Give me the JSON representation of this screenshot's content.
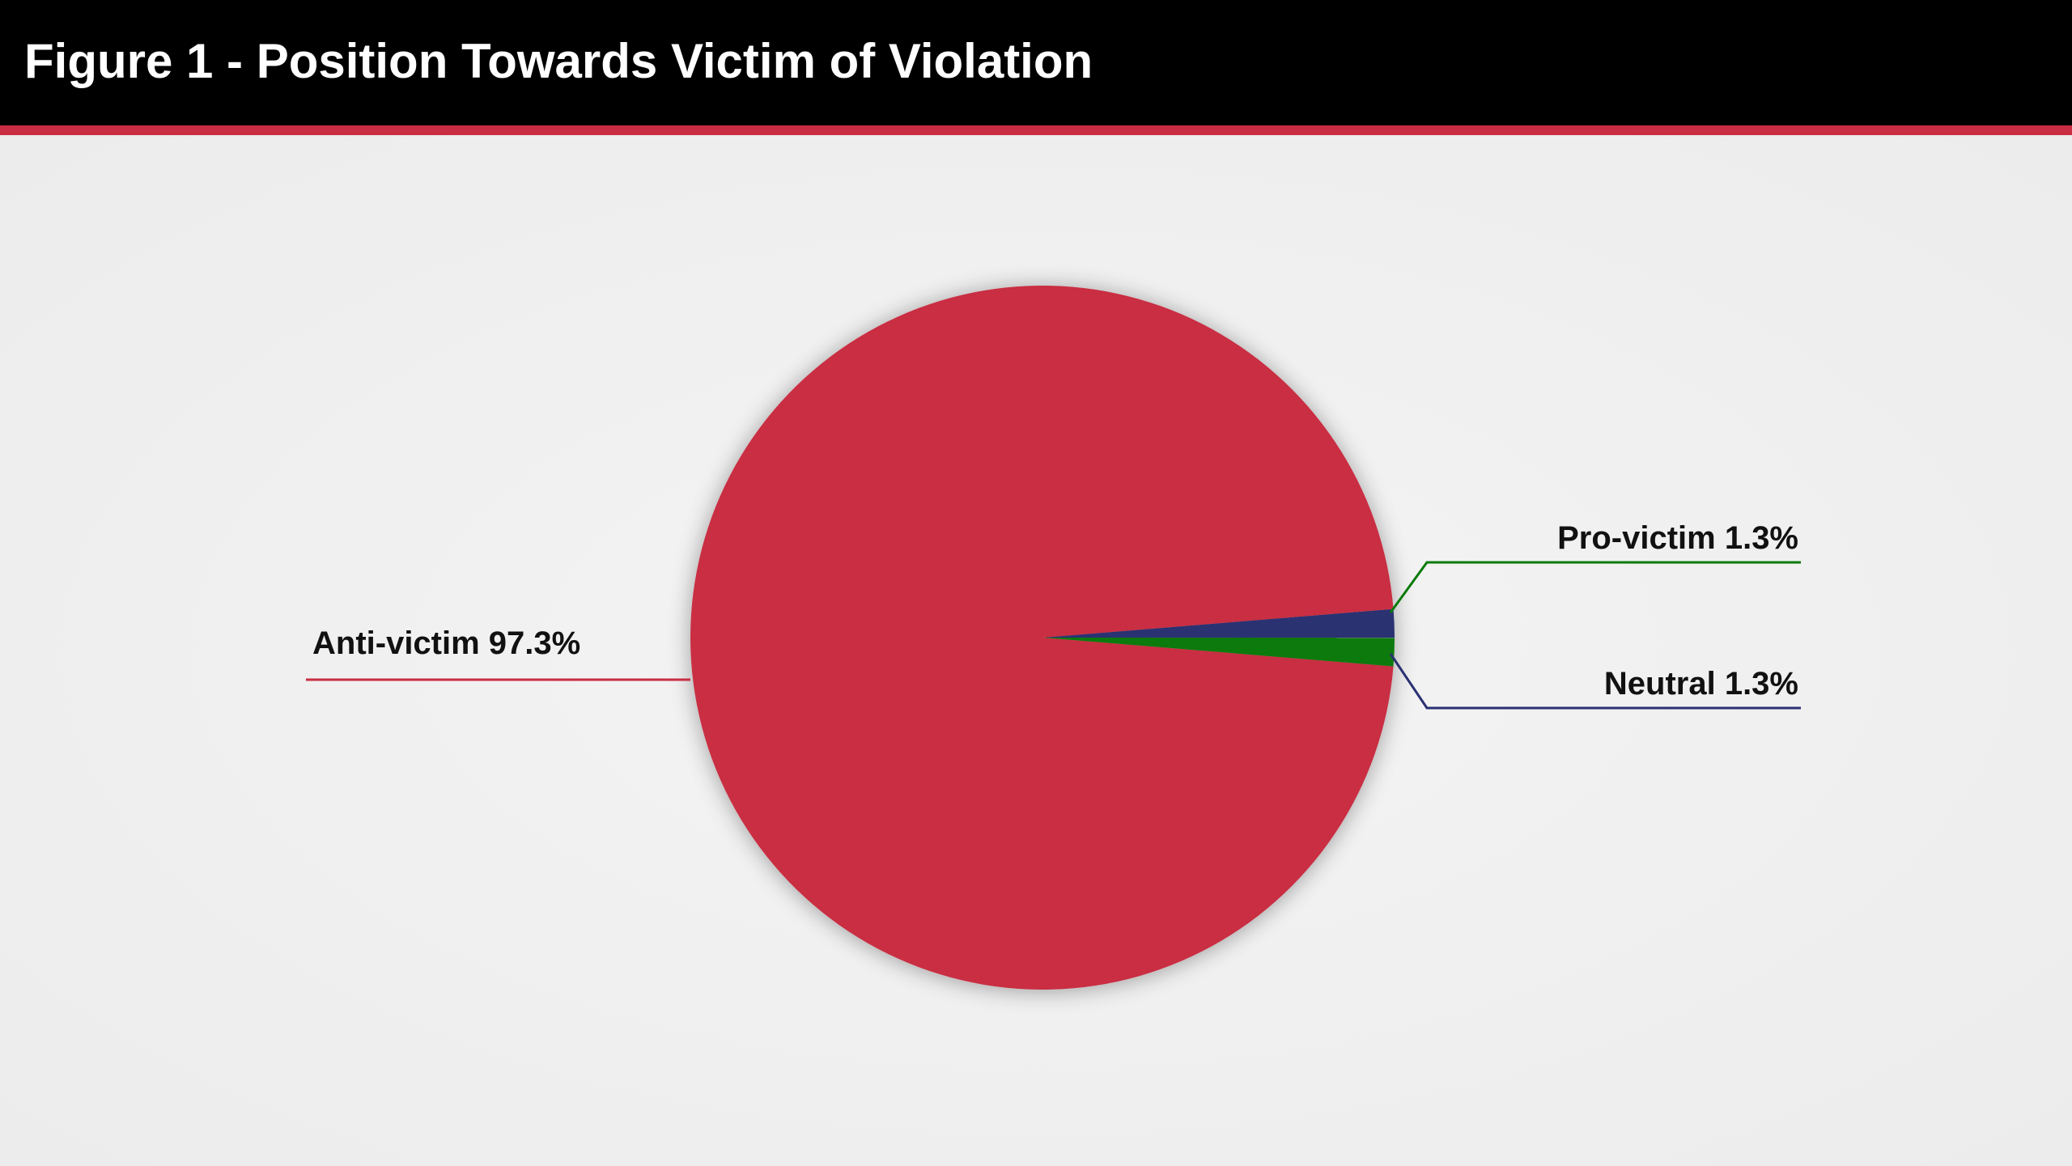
{
  "header": {
    "title": "Figure 1 - Position Towards Victim of Violation"
  },
  "colors": {
    "header_background": "#000000",
    "accent": "#c92d42",
    "page_background": "#efefef"
  },
  "chart_data": {
    "type": "pie",
    "title": "Figure 1 - Position Towards Victim of Violation",
    "slices": [
      {
        "label": "Pro-victim 1.3%",
        "category": "Pro-victim",
        "value": 1.3,
        "color": "#0a7a0a",
        "line_color": "#0a7a0a"
      },
      {
        "label": "Neutral 1.3%",
        "category": "Neutral",
        "value": 1.3,
        "color": "#2a3172",
        "line_color": "#2a3172"
      },
      {
        "label": "Anti-victim 97.3%",
        "category": "Anti-victim",
        "value": 97.3,
        "color": "#c92d42",
        "line_color": "#c92d42"
      }
    ],
    "start_angle_deg": 4.7,
    "direction": "clockwise",
    "legend": "none"
  }
}
